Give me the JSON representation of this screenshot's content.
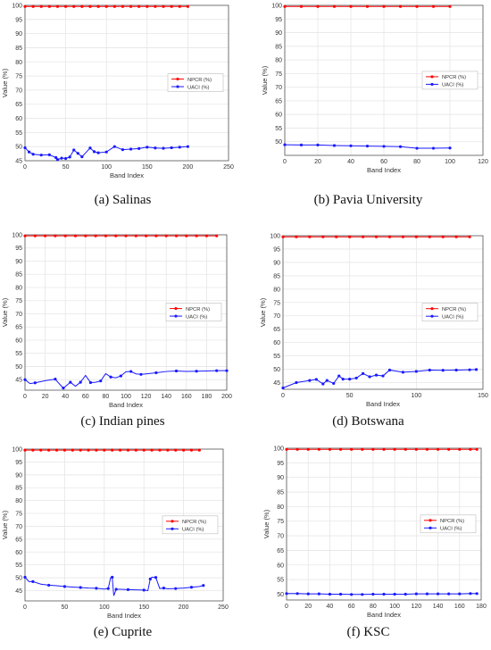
{
  "colors": {
    "npcr": "#ff0000",
    "uaci": "#1a1aff",
    "grid": "#e6e6e6",
    "axis": "#555555"
  },
  "chart_data": [
    {
      "type": "line",
      "caption": "(a) Salinas",
      "xlabel": "Band Index",
      "ylabel": "Value (%)",
      "xlim": [
        0,
        250
      ],
      "ylim": [
        45,
        100
      ],
      "xticks": [
        0,
        50,
        100,
        150,
        200,
        250
      ],
      "yticks": [
        45,
        50,
        55,
        60,
        65,
        70,
        75,
        80,
        85,
        90,
        95,
        100
      ],
      "grid": true,
      "legend": "right",
      "series": [
        {
          "name": "NPCR (%)",
          "color": "#ff0000",
          "x": [
            0,
            10,
            20,
            30,
            40,
            50,
            60,
            70,
            80,
            90,
            100,
            110,
            120,
            130,
            140,
            150,
            160,
            170,
            180,
            190,
            200
          ],
          "y": [
            99.6,
            99.6,
            99.6,
            99.6,
            99.6,
            99.6,
            99.6,
            99.6,
            99.6,
            99.6,
            99.6,
            99.6,
            99.6,
            99.6,
            99.6,
            99.6,
            99.6,
            99.6,
            99.6,
            99.6,
            99.6
          ]
        },
        {
          "name": "UACI (%)",
          "color": "#1a1aff",
          "x": [
            0,
            5,
            10,
            20,
            30,
            38,
            40,
            45,
            50,
            55,
            60,
            65,
            70,
            80,
            85,
            90,
            100,
            110,
            120,
            130,
            140,
            150,
            160,
            170,
            180,
            190,
            200
          ],
          "y": [
            49.6,
            48.1,
            47.3,
            47.0,
            47.1,
            46.1,
            45.4,
            45.9,
            45.8,
            46.3,
            48.8,
            47.6,
            46.4,
            49.5,
            48.2,
            47.8,
            48.1,
            50.0,
            48.9,
            49.1,
            49.3,
            49.8,
            49.5,
            49.4,
            49.6,
            49.8,
            50.0
          ]
        }
      ]
    },
    {
      "type": "line",
      "caption": "(b) Pavia University",
      "xlabel": "Band Index",
      "ylabel": "Value (%)",
      "xlim": [
        0,
        120
      ],
      "ylim": [
        45,
        100
      ],
      "xticks": [
        0,
        20,
        40,
        60,
        80,
        100,
        120
      ],
      "yticks": [
        50,
        55,
        60,
        65,
        70,
        75,
        80,
        85,
        90,
        95,
        100
      ],
      "grid": true,
      "legend": "right",
      "series": [
        {
          "name": "NPCR (%)",
          "color": "#ff0000",
          "x": [
            0,
            10,
            20,
            30,
            40,
            50,
            60,
            70,
            80,
            90,
            100
          ],
          "y": [
            99.6,
            99.6,
            99.6,
            99.6,
            99.6,
            99.6,
            99.6,
            99.6,
            99.6,
            99.6,
            99.6
          ]
        },
        {
          "name": "UACI (%)",
          "color": "#1a1aff",
          "x": [
            0,
            10,
            20,
            30,
            40,
            50,
            60,
            70,
            80,
            90,
            100
          ],
          "y": [
            48.9,
            48.8,
            48.8,
            48.6,
            48.5,
            48.4,
            48.3,
            48.2,
            47.6,
            47.6,
            47.7
          ]
        }
      ]
    },
    {
      "type": "line",
      "caption": "(c) Indian pines",
      "xlabel": "Band Index",
      "ylabel": "Value (%)",
      "xlim": [
        0,
        200
      ],
      "ylim": [
        41,
        100
      ],
      "xticks": [
        0,
        20,
        40,
        60,
        80,
        100,
        120,
        140,
        160,
        180,
        200
      ],
      "yticks": [
        45,
        50,
        55,
        60,
        65,
        70,
        75,
        80,
        85,
        90,
        95,
        100
      ],
      "grid": true,
      "legend": "right",
      "series": [
        {
          "name": "NPCR (%)",
          "color": "#ff0000",
          "x": [
            0,
            10,
            20,
            30,
            40,
            50,
            60,
            70,
            80,
            90,
            100,
            110,
            120,
            130,
            140,
            150,
            160,
            170,
            180,
            190
          ],
          "y": [
            99.6,
            99.6,
            99.6,
            99.6,
            99.6,
            99.6,
            99.6,
            99.6,
            99.6,
            99.6,
            99.6,
            99.6,
            99.6,
            99.6,
            99.6,
            99.6,
            99.6,
            99.6,
            99.6,
            99.6
          ]
        },
        {
          "name": "UACI (%)",
          "color": "#1a1aff",
          "x": [
            0,
            5,
            10,
            20,
            30,
            35,
            38,
            40,
            45,
            50,
            55,
            60,
            65,
            70,
            75,
            80,
            85,
            90,
            95,
            100,
            105,
            110,
            115,
            120,
            130,
            140,
            150,
            160,
            170,
            180,
            190,
            200
          ],
          "y": [
            45.0,
            43.5,
            43.8,
            44.6,
            45.2,
            43.0,
            41.8,
            42.4,
            44.0,
            42.5,
            44.0,
            46.6,
            43.9,
            44.0,
            44.5,
            47.3,
            46.0,
            45.7,
            46.4,
            48.0,
            48.1,
            47.2,
            47.0,
            47.2,
            47.6,
            48.1,
            48.3,
            48.1,
            48.2,
            48.3,
            48.4,
            48.4
          ]
        }
      ]
    },
    {
      "type": "line",
      "caption": "(d) Botswana",
      "xlabel": "Band Index",
      "ylabel": "Value (%)",
      "xlim": [
        0,
        150
      ],
      "ylim": [
        42.5,
        100
      ],
      "xticks": [
        0,
        50,
        100,
        150
      ],
      "yticks": [
        45,
        50,
        55,
        60,
        65,
        70,
        75,
        80,
        85,
        90,
        95,
        100
      ],
      "grid": true,
      "legend": "right",
      "series": [
        {
          "name": "NPCR (%)",
          "color": "#ff0000",
          "x": [
            0,
            10,
            20,
            30,
            40,
            50,
            60,
            70,
            80,
            90,
            100,
            110,
            120,
            130,
            140
          ],
          "y": [
            99.6,
            99.6,
            99.6,
            99.6,
            99.6,
            99.6,
            99.6,
            99.6,
            99.6,
            99.6,
            99.6,
            99.6,
            99.6,
            99.6,
            99.6
          ]
        },
        {
          "name": "UACI (%)",
          "color": "#1a1aff",
          "x": [
            0,
            10,
            20,
            25,
            30,
            33,
            38,
            42,
            45,
            50,
            55,
            60,
            65,
            70,
            75,
            80,
            90,
            100,
            110,
            120,
            130,
            140,
            145
          ],
          "y": [
            43.0,
            45.0,
            45.8,
            46.2,
            44.5,
            45.8,
            44.7,
            47.5,
            46.3,
            46.3,
            46.7,
            48.4,
            47.2,
            47.8,
            47.5,
            49.7,
            48.9,
            49.2,
            49.7,
            49.6,
            49.7,
            49.8,
            49.9
          ]
        }
      ]
    },
    {
      "type": "line",
      "caption": "(e) Cuprite",
      "xlabel": "Band Index",
      "ylabel": "Value (%)",
      "xlim": [
        0,
        250
      ],
      "ylim": [
        41,
        100
      ],
      "xticks": [
        0,
        50,
        100,
        150,
        200,
        250
      ],
      "yticks": [
        45,
        50,
        55,
        60,
        65,
        70,
        75,
        80,
        85,
        90,
        95,
        100
      ],
      "grid": true,
      "legend": "right",
      "series": [
        {
          "name": "NPCR (%)",
          "color": "#ff0000",
          "x": [
            0,
            10,
            20,
            30,
            40,
            50,
            60,
            70,
            80,
            90,
            100,
            110,
            120,
            130,
            140,
            150,
            160,
            170,
            180,
            190,
            200,
            210,
            220
          ],
          "y": [
            99.6,
            99.6,
            99.6,
            99.6,
            99.6,
            99.6,
            99.6,
            99.6,
            99.6,
            99.6,
            99.6,
            99.6,
            99.6,
            99.6,
            99.6,
            99.6,
            99.6,
            99.6,
            99.6,
            99.6,
            99.6,
            99.6,
            99.6
          ]
        },
        {
          "name": "UACI (%)",
          "color": "#1a1aff",
          "x": [
            0,
            5,
            10,
            20,
            30,
            40,
            50,
            60,
            70,
            80,
            90,
            100,
            105,
            108,
            110,
            112,
            115,
            120,
            130,
            140,
            150,
            155,
            158,
            160,
            165,
            170,
            175,
            180,
            190,
            200,
            210,
            220,
            225
          ],
          "y": [
            50.2,
            48.5,
            48.5,
            47.5,
            47.1,
            46.9,
            46.6,
            46.4,
            46.2,
            46.0,
            45.9,
            45.6,
            45.8,
            50.0,
            50.2,
            43.0,
            45.5,
            45.5,
            45.4,
            45.3,
            45.2,
            45.0,
            49.5,
            50.2,
            50.1,
            45.8,
            46.0,
            45.7,
            45.8,
            46.0,
            46.3,
            46.6,
            47.0
          ]
        }
      ]
    },
    {
      "type": "line",
      "caption": "(f) KSC",
      "xlabel": "Band Index",
      "ylabel": "Value (%)",
      "xlim": [
        0,
        180
      ],
      "ylim": [
        48,
        100
      ],
      "xticks": [
        0,
        20,
        40,
        60,
        80,
        100,
        120,
        140,
        160,
        180
      ],
      "yticks": [
        50,
        55,
        60,
        65,
        70,
        75,
        80,
        85,
        90,
        95,
        100
      ],
      "grid": true,
      "legend": "right",
      "series": [
        {
          "name": "NPCR (%)",
          "color": "#ff0000",
          "x": [
            0,
            10,
            20,
            30,
            40,
            50,
            60,
            70,
            80,
            90,
            100,
            110,
            120,
            130,
            140,
            150,
            160,
            170,
            176
          ],
          "y": [
            99.6,
            99.6,
            99.6,
            99.6,
            99.6,
            99.6,
            99.6,
            99.6,
            99.6,
            99.6,
            99.6,
            99.6,
            99.6,
            99.6,
            99.6,
            99.6,
            99.6,
            99.6,
            99.6
          ]
        },
        {
          "name": "UACI (%)",
          "color": "#1a1aff",
          "x": [
            0,
            10,
            20,
            30,
            40,
            50,
            60,
            70,
            80,
            90,
            100,
            110,
            120,
            130,
            140,
            150,
            160,
            170,
            176
          ],
          "y": [
            50.2,
            50.2,
            50.1,
            50.1,
            50.0,
            50.0,
            49.9,
            49.9,
            50.0,
            50.0,
            50.0,
            50.0,
            50.1,
            50.1,
            50.1,
            50.1,
            50.1,
            50.2,
            50.2
          ]
        }
      ]
    }
  ]
}
